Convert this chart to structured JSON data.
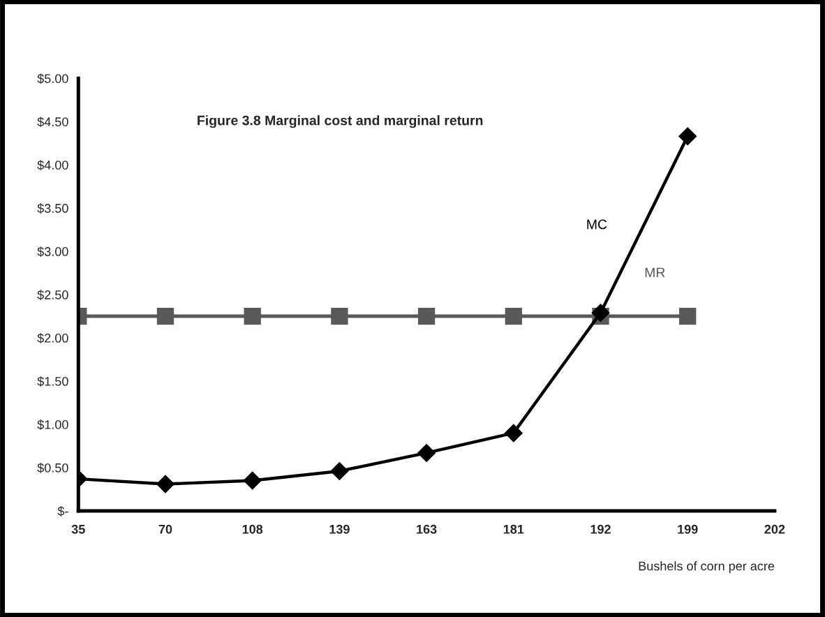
{
  "chart_data": {
    "type": "line",
    "title": "Figure 3.8 Marginal cost and marginal return",
    "xlabel": "Bushels of corn per acre",
    "categories": [
      "35",
      "70",
      "108",
      "139",
      "163",
      "181",
      "192",
      "199",
      "202"
    ],
    "series": [
      {
        "name": "MC",
        "color": "#000000",
        "marker": "diamond",
        "values": [
          0.37,
          0.31,
          0.35,
          0.46,
          0.67,
          0.9,
          2.29,
          4.33,
          null
        ]
      },
      {
        "name": "MR",
        "color": "#595959",
        "marker": "square",
        "values": [
          2.25,
          2.25,
          2.25,
          2.25,
          2.25,
          2.25,
          2.25,
          2.25,
          null
        ]
      }
    ],
    "ylim": [
      0,
      5
    ],
    "yticks": [
      {
        "value": 0,
        "label": "$-"
      },
      {
        "value": 0.5,
        "label": "$0.50"
      },
      {
        "value": 1,
        "label": "$1.00"
      },
      {
        "value": 1.5,
        "label": "$1.50"
      },
      {
        "value": 2,
        "label": "$2.00"
      },
      {
        "value": 2.5,
        "label": "$2.50"
      },
      {
        "value": 3,
        "label": "$3.00"
      },
      {
        "value": 3.5,
        "label": "$3.50"
      },
      {
        "value": 4,
        "label": "$4.00"
      },
      {
        "value": 4.5,
        "label": "$4.50"
      },
      {
        "value": 5,
        "label": "$5.00"
      }
    ],
    "grid": false,
    "legend": false,
    "line_style": "solid"
  }
}
